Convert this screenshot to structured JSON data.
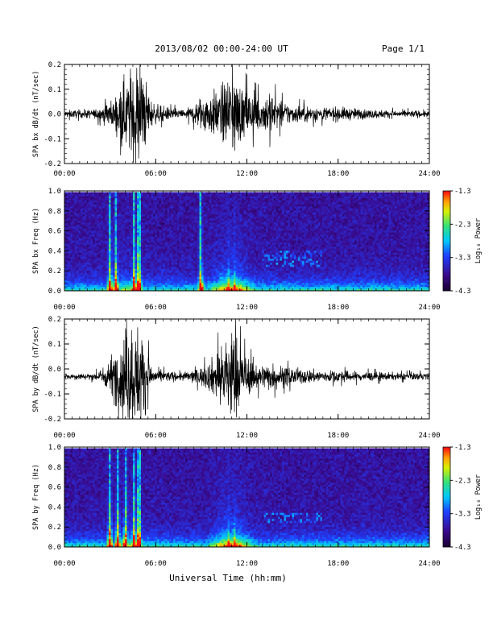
{
  "header": {
    "title": "2013/08/02  00:00-24:00 UT",
    "page": "Page 1/1"
  },
  "footer": {
    "xlabel": "Universal Time (hh:mm)"
  },
  "colors": {
    "trace": "#000000",
    "background": "#ffffff",
    "spectrogram_floor": "#2a0a4a"
  },
  "chart_data": [
    {
      "type": "line",
      "id": "bx_dbdt",
      "ylabel": "SPA bx dB/dt (nT/sec)",
      "x_range_hours": [
        0,
        24
      ],
      "xticks": [
        "00:00",
        "06:00",
        "12:00",
        "18:00",
        "24:00"
      ],
      "ylim": [
        -0.2,
        0.2
      ],
      "yticks": [
        "-0.2",
        "-0.1",
        "0.0",
        "0.1",
        "0.2"
      ],
      "baseline": 0.0,
      "envelope": {
        "x_hours": [
          0,
          2,
          2.8,
          3.2,
          3.6,
          4.0,
          4.4,
          4.8,
          5.0,
          5.3,
          5.7,
          6.0,
          7.0,
          8.0,
          8.5,
          9.0,
          9.5,
          10.0,
          10.5,
          10.8,
          11.0,
          11.3,
          11.6,
          12.0,
          12.5,
          13.0,
          13.5,
          14.0,
          15.0,
          16.0,
          17.0,
          18.0,
          20.0,
          22.0,
          24.0
        ],
        "amplitude": [
          0.015,
          0.02,
          0.05,
          0.06,
          0.12,
          0.15,
          0.2,
          0.22,
          0.2,
          0.15,
          0.06,
          0.04,
          0.025,
          0.02,
          0.04,
          0.08,
          0.09,
          0.1,
          0.13,
          0.18,
          0.2,
          0.16,
          0.12,
          0.1,
          0.08,
          0.07,
          0.12,
          0.06,
          0.04,
          0.035,
          0.03,
          0.03,
          0.02,
          0.015,
          0.015
        ]
      }
    },
    {
      "type": "heatmap",
      "id": "bx_spectrogram",
      "ylabel": "SPA bx Freq (Hz)",
      "x_range_hours": [
        0,
        24
      ],
      "xticks": [
        "00:00",
        "06:00",
        "12:00",
        "18:00",
        "24:00"
      ],
      "ylim": [
        0.0,
        1.0
      ],
      "yticks": [
        "0.0",
        "0.2",
        "0.4",
        "0.6",
        "0.8",
        "1.0"
      ],
      "colorbar": {
        "label": "Log₁₀ Power",
        "range": [
          -4.3,
          -1.3
        ],
        "ticks": [
          "-1.3",
          "-2.3",
          "-3.3",
          "-4.3"
        ]
      },
      "features": {
        "bursts_hours": [
          3.0,
          3.4,
          4.6,
          4.9,
          9.0,
          10.8,
          11.2
        ],
        "band_hours": [
          13.0,
          17.0
        ],
        "band_freq_hz": [
          0.25,
          0.4
        ]
      }
    },
    {
      "type": "line",
      "id": "by_dbdt",
      "ylabel": "SPA by dB/dt (nT/sec)",
      "x_range_hours": [
        0,
        24
      ],
      "xticks": [
        "00:00",
        "06:00",
        "12:00",
        "18:00",
        "24:00"
      ],
      "ylim": [
        -0.2,
        0.2
      ],
      "yticks": [
        "-0.2",
        "-0.1",
        "0.0",
        "0.1",
        "0.2"
      ],
      "baseline": -0.03,
      "envelope": {
        "x_hours": [
          0,
          2,
          2.8,
          3.2,
          3.6,
          4.0,
          4.4,
          4.8,
          5.0,
          5.3,
          5.7,
          6.0,
          7.0,
          8.0,
          8.5,
          9.0,
          9.5,
          10.0,
          10.5,
          10.8,
          11.0,
          11.3,
          11.6,
          12.0,
          12.5,
          13.0,
          13.5,
          14.0,
          15.0,
          16.0,
          17.0,
          18.0,
          20.0,
          22.0,
          24.0
        ],
        "amplitude": [
          0.012,
          0.015,
          0.05,
          0.1,
          0.15,
          0.2,
          0.22,
          0.22,
          0.2,
          0.15,
          0.05,
          0.03,
          0.02,
          0.02,
          0.03,
          0.04,
          0.06,
          0.1,
          0.15,
          0.2,
          0.22,
          0.18,
          0.12,
          0.08,
          0.06,
          0.05,
          0.06,
          0.05,
          0.035,
          0.03,
          0.025,
          0.025,
          0.02,
          0.015,
          0.015
        ]
      }
    },
    {
      "type": "heatmap",
      "id": "by_spectrogram",
      "ylabel": "SPA by Freq (Hz)",
      "x_range_hours": [
        0,
        24
      ],
      "xticks": [
        "00:00",
        "06:00",
        "12:00",
        "18:00",
        "24:00"
      ],
      "ylim": [
        0.0,
        1.0
      ],
      "yticks": [
        "0.0",
        "0.2",
        "0.4",
        "0.6",
        "0.8",
        "1.0"
      ],
      "colorbar": {
        "label": "Log₁₀ Power",
        "range": [
          -4.3,
          -1.3
        ],
        "ticks": [
          "-1.3",
          "-2.3",
          "-3.3",
          "-4.3"
        ]
      },
      "features": {
        "bursts_hours": [
          3.0,
          3.5,
          4.0,
          4.6,
          4.9,
          10.8,
          11.2
        ],
        "band_hours": [
          13.0,
          17.0
        ],
        "band_freq_hz": [
          0.25,
          0.35
        ]
      }
    }
  ]
}
